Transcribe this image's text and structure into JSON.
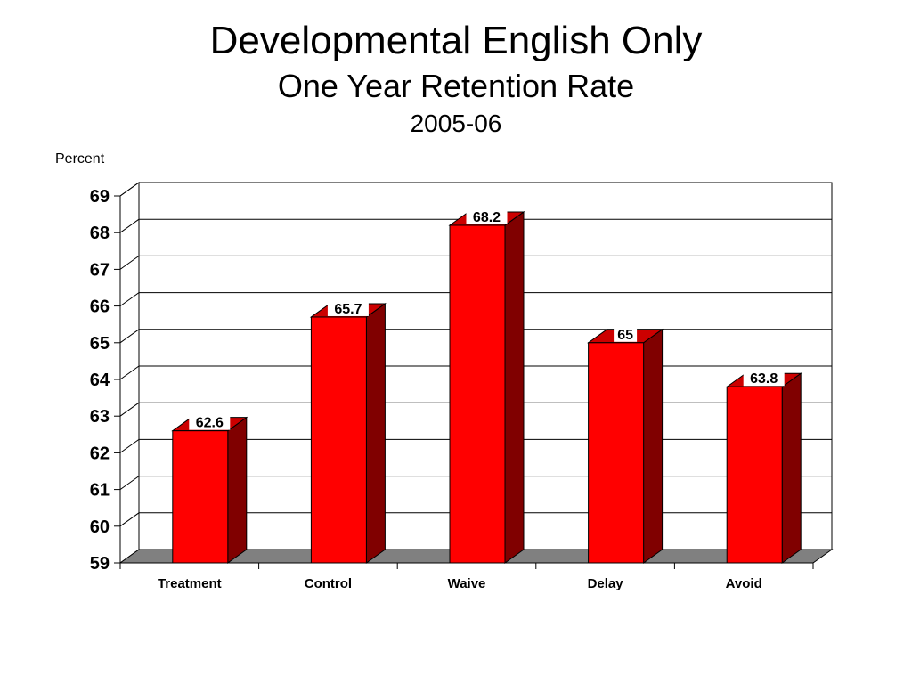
{
  "chart_data": {
    "type": "bar",
    "title": "Developmental English Only",
    "subtitle": "One Year Retention Rate",
    "subtitle2": "2005-06",
    "ylabel": "Percent",
    "xlabel": "",
    "categories": [
      "Treatment",
      "Control",
      "Waive",
      "Delay",
      "Avoid"
    ],
    "values": [
      62.6,
      65.7,
      68.2,
      65,
      63.8
    ],
    "value_labels": [
      "62.6",
      "65.7",
      "68.2",
      "65",
      "63.8"
    ],
    "ylim": [
      59,
      69
    ],
    "yticks": [
      "59",
      "60",
      "61",
      "62",
      "63",
      "64",
      "65",
      "66",
      "67",
      "68",
      "69"
    ],
    "grid": true,
    "legend": "none",
    "colors": {
      "bar_front": "#ff0000",
      "bar_side": "#800000",
      "bar_top": "#cc0000",
      "floor": "#808080",
      "label_bg": "#ffffff"
    }
  }
}
